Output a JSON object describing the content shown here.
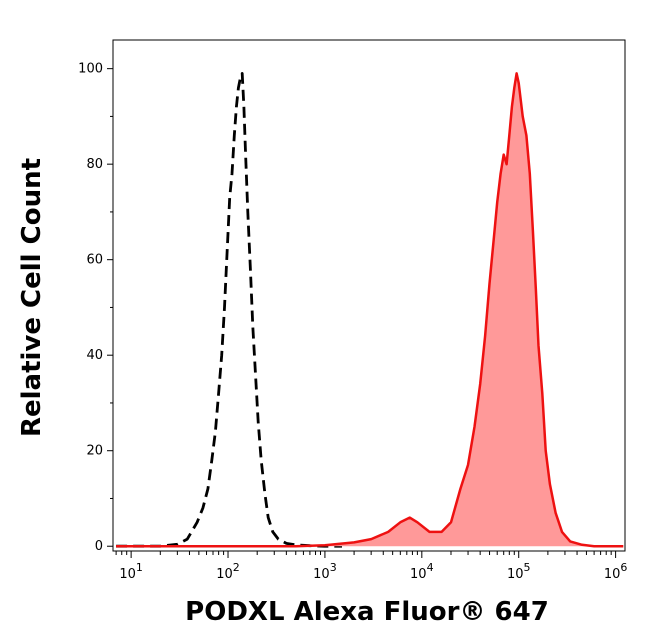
{
  "chart_data": {
    "type": "area",
    "xlabel": "PODXL Alexa Fluor® 647",
    "ylabel": "Relative Cell Count",
    "x_scale": "log",
    "xlim": [
      6.5,
      1250000
    ],
    "ylim": [
      -1,
      106
    ],
    "grid": false,
    "x_ticks": [
      {
        "value": 10,
        "base": "10",
        "exp": "1"
      },
      {
        "value": 100,
        "base": "10",
        "exp": "2"
      },
      {
        "value": 1000,
        "base": "10",
        "exp": "3"
      },
      {
        "value": 10000,
        "base": "10",
        "exp": "4"
      },
      {
        "value": 100000,
        "base": "10",
        "exp": "5"
      },
      {
        "value": 1000000,
        "base": "10",
        "exp": "6"
      }
    ],
    "y_ticks": [
      {
        "value": 0,
        "label": "0"
      },
      {
        "value": 20,
        "label": "20"
      },
      {
        "value": 40,
        "label": "40"
      },
      {
        "value": 60,
        "label": "60"
      },
      {
        "value": 80,
        "label": "80"
      },
      {
        "value": 100,
        "label": "100"
      }
    ],
    "series": [
      {
        "style": "dashed-line",
        "color": "#000000",
        "points": [
          [
            7,
            0
          ],
          [
            20,
            0
          ],
          [
            30,
            0.4
          ],
          [
            38,
            1.5
          ],
          [
            42,
            3
          ],
          [
            48,
            5
          ],
          [
            55,
            8
          ],
          [
            62,
            12
          ],
          [
            68,
            18
          ],
          [
            74,
            24
          ],
          [
            80,
            32
          ],
          [
            86,
            40
          ],
          [
            92,
            50
          ],
          [
            98,
            62
          ],
          [
            104,
            73
          ],
          [
            110,
            78
          ],
          [
            116,
            86
          ],
          [
            122,
            92
          ],
          [
            128,
            96
          ],
          [
            134,
            98
          ],
          [
            140,
            99
          ],
          [
            146,
            92
          ],
          [
            152,
            82
          ],
          [
            160,
            70
          ],
          [
            170,
            58
          ],
          [
            180,
            46
          ],
          [
            192,
            36
          ],
          [
            205,
            26
          ],
          [
            220,
            18
          ],
          [
            240,
            11
          ],
          [
            260,
            6
          ],
          [
            290,
            3
          ],
          [
            330,
            1.5
          ],
          [
            400,
            0.6
          ],
          [
            500,
            0.3
          ],
          [
            700,
            0.1
          ],
          [
            1000,
            0
          ],
          [
            1500,
            0
          ]
        ]
      },
      {
        "style": "filled-area",
        "color": "#ee1111",
        "fill": "#ff9999",
        "points": [
          [
            7,
            0
          ],
          [
            100,
            0
          ],
          [
            500,
            0
          ],
          [
            1000,
            0.2
          ],
          [
            2000,
            0.8
          ],
          [
            3000,
            1.5
          ],
          [
            4500,
            3
          ],
          [
            6000,
            5
          ],
          [
            7500,
            6
          ],
          [
            9000,
            5
          ],
          [
            12000,
            3
          ],
          [
            16000,
            3
          ],
          [
            20000,
            5
          ],
          [
            25000,
            12
          ],
          [
            30000,
            17
          ],
          [
            35000,
            25
          ],
          [
            40000,
            34
          ],
          [
            45000,
            44
          ],
          [
            50000,
            55
          ],
          [
            55000,
            64
          ],
          [
            60000,
            72
          ],
          [
            65000,
            78
          ],
          [
            70000,
            82
          ],
          [
            75000,
            80
          ],
          [
            80000,
            86
          ],
          [
            85000,
            92
          ],
          [
            90000,
            96
          ],
          [
            95000,
            99
          ],
          [
            100000,
            97
          ],
          [
            110000,
            90
          ],
          [
            120000,
            86
          ],
          [
            130000,
            78
          ],
          [
            140000,
            66
          ],
          [
            150000,
            54
          ],
          [
            160000,
            42
          ],
          [
            175000,
            32
          ],
          [
            190000,
            20
          ],
          [
            210000,
            13
          ],
          [
            240000,
            7
          ],
          [
            280000,
            3
          ],
          [
            340000,
            1
          ],
          [
            450000,
            0.3
          ],
          [
            600000,
            0
          ],
          [
            1200000,
            0
          ]
        ]
      }
    ]
  }
}
